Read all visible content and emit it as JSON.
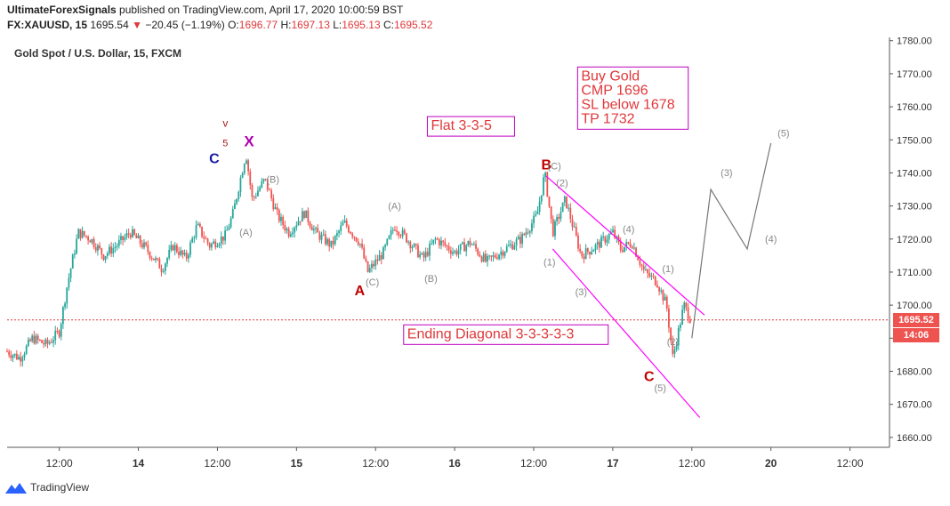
{
  "header": {
    "publisher": "UltimateForexSignals",
    "published_text": " published on TradingView.com, April 17, 2020 10:00:59 BST",
    "symbol": "FX:XAUUSD, 15",
    "last_price": "1695.54",
    "change": "−20.45 (−1.19%)",
    "open_label": "O:",
    "open": "1696.77",
    "high_label": "H:",
    "high": "1697.13",
    "low_label": "L:",
    "low": "1695.13",
    "close_label": "C:",
    "close": "1695.52"
  },
  "chart_subtitle": "Gold Spot / U.S. Dollar, 15, FXCM",
  "price_tag": {
    "price": "1695.52",
    "countdown": "14:06"
  },
  "footer": {
    "brand": "TradingView"
  },
  "colors": {
    "up": "#26a69a",
    "down": "#ef5350",
    "channel": "#ff00ff",
    "wave_label": "#c00000",
    "projection": "#777777",
    "note_border": "#c000c0",
    "note_text": "#e0383b"
  },
  "chart_data": {
    "type": "candlestick",
    "symbol": "FX:XAUUSD",
    "timeframe": "15",
    "y_ticks": [
      1660,
      1670,
      1680,
      1690,
      1700,
      1710,
      1720,
      1730,
      1740,
      1750,
      1760,
      1770,
      1780
    ],
    "y_tick_labels": [
      "1660.00",
      "1670.00",
      "1680.00",
      "",
      "1700.00",
      "1710.00",
      "1720.00",
      "1730.00",
      "1740.00",
      "1750.00",
      "1760.00",
      "1770.00",
      "1780.00"
    ],
    "ylim": [
      1657,
      1781
    ],
    "x_ticks": [
      {
        "label": "12:00",
        "t": 0.5
      },
      {
        "label": "14",
        "t": 1.0
      },
      {
        "label": "12:00",
        "t": 1.5
      },
      {
        "label": "15",
        "t": 2.0
      },
      {
        "label": "12:00",
        "t": 2.5
      },
      {
        "label": "16",
        "t": 3.0
      },
      {
        "label": "12:00",
        "t": 3.5
      },
      {
        "label": "17",
        "t": 4.0
      },
      {
        "label": "12:00",
        "t": 4.5
      },
      {
        "label": "20",
        "t": 5.0
      },
      {
        "label": "12:00",
        "t": 5.5
      }
    ],
    "xlim": [
      0.17,
      5.75
    ],
    "price_path": [
      [
        0.17,
        1686
      ],
      [
        0.25,
        1684
      ],
      [
        0.33,
        1690
      ],
      [
        0.42,
        1688
      ],
      [
        0.5,
        1692
      ],
      [
        0.55,
        1706
      ],
      [
        0.62,
        1722
      ],
      [
        0.7,
        1720
      ],
      [
        0.78,
        1715
      ],
      [
        0.86,
        1718
      ],
      [
        0.95,
        1722
      ],
      [
        1.05,
        1717
      ],
      [
        1.15,
        1711
      ],
      [
        1.22,
        1718
      ],
      [
        1.3,
        1714
      ],
      [
        1.37,
        1724
      ],
      [
        1.45,
        1718
      ],
      [
        1.55,
        1721
      ],
      [
        1.6,
        1728
      ],
      [
        1.68,
        1746
      ],
      [
        1.72,
        1732
      ],
      [
        1.8,
        1738
      ],
      [
        1.88,
        1727
      ],
      [
        1.95,
        1722
      ],
      [
        2.05,
        1728
      ],
      [
        2.12,
        1722
      ],
      [
        2.22,
        1718
      ],
      [
        2.3,
        1725
      ],
      [
        2.4,
        1719
      ],
      [
        2.45,
        1710
      ],
      [
        2.55,
        1716
      ],
      [
        2.62,
        1724
      ],
      [
        2.7,
        1720
      ],
      [
        2.8,
        1714
      ],
      [
        2.88,
        1720
      ],
      [
        3.0,
        1716
      ],
      [
        3.1,
        1719
      ],
      [
        3.2,
        1713
      ],
      [
        3.32,
        1717
      ],
      [
        3.42,
        1720
      ],
      [
        3.52,
        1727
      ],
      [
        3.57,
        1740
      ],
      [
        3.62,
        1722
      ],
      [
        3.7,
        1732
      ],
      [
        3.8,
        1715
      ],
      [
        3.9,
        1718
      ],
      [
        4.0,
        1722
      ],
      [
        4.05,
        1717
      ],
      [
        4.12,
        1719
      ],
      [
        4.2,
        1710
      ],
      [
        4.28,
        1707
      ],
      [
        4.34,
        1700
      ],
      [
        4.38,
        1684
      ],
      [
        4.45,
        1700
      ],
      [
        4.5,
        1695
      ]
    ],
    "projection": [
      [
        4.5,
        1690
      ],
      [
        4.62,
        1735
      ],
      [
        4.85,
        1717
      ],
      [
        5.0,
        1749
      ]
    ],
    "channel_lines": [
      [
        [
          3.58,
          1739
        ],
        [
          4.58,
          1697
        ]
      ],
      [
        [
          3.62,
          1717
        ],
        [
          4.55,
          1666
        ]
      ]
    ],
    "current_price": 1695.52,
    "wave_labels": [
      {
        "text": "C",
        "t": 1.48,
        "p": 1743,
        "color": "#1a1aa0",
        "size": 16
      },
      {
        "text": "v",
        "t": 1.55,
        "p": 1754,
        "color": "#aa1a1a",
        "size": 12
      },
      {
        "text": "5",
        "t": 1.55,
        "p": 1748,
        "color": "#aa1a1a",
        "size": 11
      },
      {
        "text": "X",
        "t": 1.7,
        "p": 1748,
        "color": "#b000b0",
        "size": 17
      },
      {
        "text": "(B)",
        "t": 1.85,
        "p": 1737,
        "color": "#888888",
        "size": 11
      },
      {
        "text": "(A)",
        "t": 1.68,
        "p": 1721,
        "color": "#888888",
        "size": 11
      },
      {
        "text": "A",
        "t": 2.4,
        "p": 1703,
        "color": "#c00000",
        "size": 16
      },
      {
        "text": "(C)",
        "t": 2.48,
        "p": 1706,
        "color": "#888888",
        "size": 11
      },
      {
        "text": "(A)",
        "t": 2.62,
        "p": 1729,
        "color": "#888888",
        "size": 11
      },
      {
        "text": "(B)",
        "t": 2.85,
        "p": 1707,
        "color": "#888888",
        "size": 11
      },
      {
        "text": "B",
        "t": 3.58,
        "p": 1741,
        "color": "#c00000",
        "size": 16
      },
      {
        "text": "(C)",
        "t": 3.63,
        "p": 1741,
        "color": "#888888",
        "size": 11
      },
      {
        "text": "(2)",
        "t": 3.68,
        "p": 1736,
        "color": "#888888",
        "size": 11
      },
      {
        "text": "(1)",
        "t": 3.6,
        "p": 1712,
        "color": "#888888",
        "size": 11
      },
      {
        "text": "(3)",
        "t": 3.8,
        "p": 1703,
        "color": "#888888",
        "size": 11
      },
      {
        "text": "(4)",
        "t": 4.1,
        "p": 1722,
        "color": "#888888",
        "size": 11
      },
      {
        "text": "(1)",
        "t": 4.35,
        "p": 1710,
        "color": "#888888",
        "size": 11
      },
      {
        "text": "(2)",
        "t": 4.38,
        "p": 1688,
        "color": "#888888",
        "size": 11
      },
      {
        "text": "C",
        "t": 4.23,
        "p": 1677,
        "color": "#c00000",
        "size": 16
      },
      {
        "text": "(5)",
        "t": 4.3,
        "p": 1674,
        "color": "#888888",
        "size": 11
      },
      {
        "text": "(3)",
        "t": 4.72,
        "p": 1739,
        "color": "#888888",
        "size": 11
      },
      {
        "text": "(4)",
        "t": 5.0,
        "p": 1719,
        "color": "#888888",
        "size": 11
      },
      {
        "text": "(5)",
        "t": 5.08,
        "p": 1751,
        "color": "#888888",
        "size": 11
      }
    ],
    "notes": [
      {
        "lines": [
          "Buy Gold",
          "CMP 1696",
          "SL below 1678",
          "TP 1732"
        ],
        "t": 3.8,
        "p": 1768
      },
      {
        "lines": [
          "Flat 3-3-5"
        ],
        "t": 2.85,
        "p": 1753
      },
      {
        "lines": [
          "Ending Diagonal 3-3-3-3-3"
        ],
        "t": 2.7,
        "p": 1690
      }
    ]
  }
}
